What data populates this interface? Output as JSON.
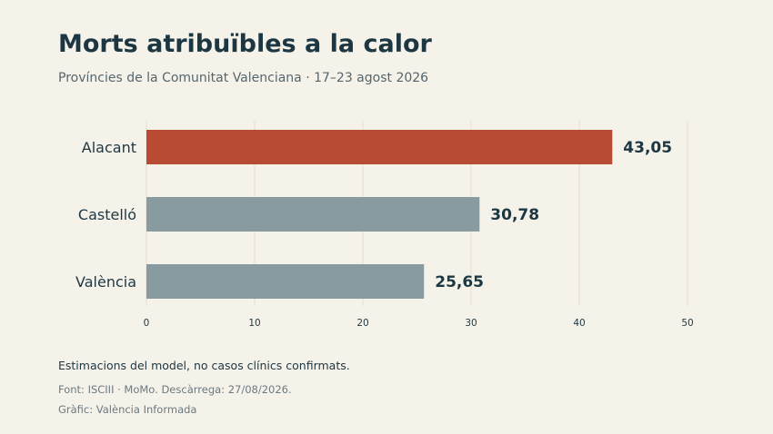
{
  "header": {
    "title": "Morts atribuïbles a la calor",
    "subtitle": "Províncies de la Comunitat Valenciana · 17–23 agost 2026"
  },
  "footer": {
    "note": "Estimacions del model, no casos clínics confirmats.",
    "source": "Font: ISCIII · MoMo. Descàrrega: 27/08/2026.",
    "credit": "Gràfic: València Informada"
  },
  "chart_data": {
    "type": "bar",
    "orientation": "horizontal",
    "categories": [
      "Alacant",
      "Castelló",
      "València"
    ],
    "values": [
      43.05,
      30.78,
      25.65
    ],
    "value_labels": [
      "43,05",
      "30,78",
      "25,65"
    ],
    "xlim": [
      0,
      50
    ],
    "xticks": [
      0,
      10,
      20,
      30,
      40,
      50
    ],
    "grid": true,
    "highlight_color": "#b94a33",
    "default_color": "#889ba1",
    "highlight_category": "Alacant"
  }
}
